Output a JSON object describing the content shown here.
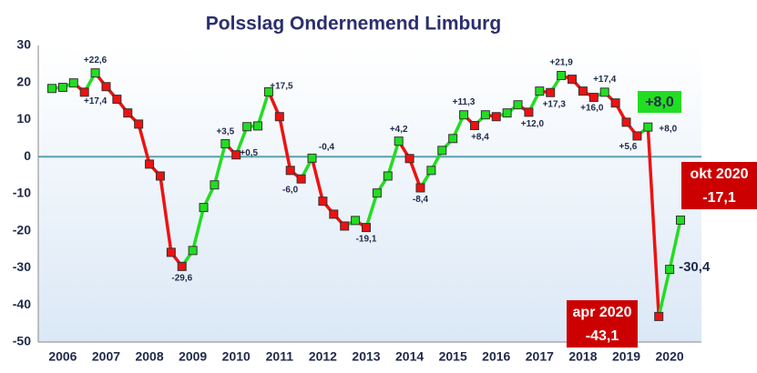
{
  "chart_data": {
    "type": "line",
    "title": "Polsslag Ondernemend Limburg",
    "categories": [
      null,
      "2006",
      null,
      null,
      null,
      "2007",
      null,
      null,
      null,
      "2008",
      null,
      null,
      null,
      "2009",
      null,
      null,
      null,
      "2010",
      null,
      null,
      null,
      "2011",
      null,
      null,
      null,
      "2012",
      null,
      null,
      null,
      "2013",
      null,
      null,
      null,
      "2014",
      null,
      null,
      null,
      "2015",
      null,
      null,
      null,
      "2016",
      null,
      null,
      null,
      "2017",
      null,
      null,
      null,
      "2018",
      null,
      null,
      null,
      "2019",
      null,
      null,
      null,
      "2020",
      null
    ],
    "values": [
      18.4,
      18.7,
      19.9,
      17.4,
      22.6,
      18.9,
      15.5,
      11.8,
      8.8,
      -2.0,
      -5.2,
      -25.8,
      -29.6,
      -25.3,
      -13.7,
      -7.6,
      3.5,
      0.5,
      8.1,
      8.3,
      17.5,
      10.8,
      -3.7,
      -6.0,
      -0.4,
      -12.0,
      -15.5,
      -18.7,
      -17.2,
      -19.1,
      -9.8,
      -5.2,
      4.2,
      -0.5,
      -8.4,
      -3.7,
      1.7,
      4.9,
      11.3,
      8.4,
      11.3,
      10.8,
      11.8,
      14.0,
      12.0,
      17.7,
      17.3,
      21.9,
      20.9,
      17.7,
      16.0,
      17.4,
      14.5,
      9.3,
      5.6,
      8.0,
      -43.1,
      -30.4,
      -17.1
    ],
    "value_labels": [
      null,
      null,
      null,
      "+17,4",
      "+22,6",
      null,
      null,
      null,
      null,
      null,
      null,
      null,
      "-29,6",
      null,
      null,
      null,
      "+3,5",
      "+0,5",
      null,
      null,
      "+17,5",
      null,
      null,
      "-6,0",
      "-0,4",
      null,
      null,
      null,
      null,
      "-19,1",
      null,
      null,
      "+4,2",
      null,
      "-8,4",
      null,
      null,
      null,
      "+11,3",
      "+8,4",
      null,
      null,
      null,
      null,
      "+12,0",
      null,
      "+17,3",
      "+21,9",
      null,
      null,
      "+16,0",
      "+17,4",
      null,
      null,
      "+5,6",
      "+8,0",
      null,
      "-30,4",
      null
    ],
    "callouts": [
      {
        "index": 55,
        "lines": [
          "+8,0"
        ],
        "color": "#22dd22"
      },
      {
        "index": 56,
        "lines": [
          "apr 2020",
          "-43,1"
        ],
        "color": "#cc0000"
      },
      {
        "index": 58,
        "lines": [
          "okt 2020",
          "-17,1"
        ],
        "color": "#cc0000"
      }
    ],
    "up_color": "#22dd22",
    "down_color": "#ee1111",
    "ylim": [
      -50,
      30
    ],
    "yticks": [
      -50,
      -40,
      -30,
      -20,
      -10,
      0,
      10,
      20,
      30
    ],
    "zero_line_color": "#5aa0b0"
  }
}
